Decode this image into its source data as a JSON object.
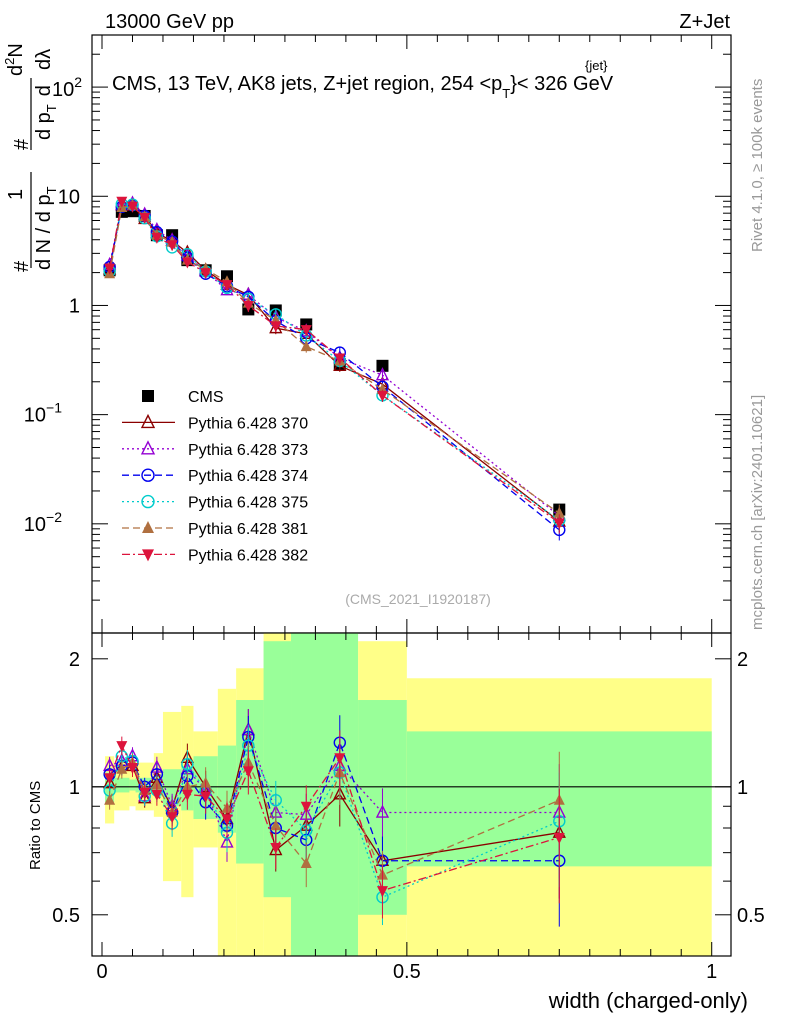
{
  "header": {
    "energy_label": "13000 GeV pp",
    "process_label": "Z+Jet",
    "analysis_title": "CMS, 13 TeV, AK8 jets, Z+jet region, 254 <p",
    "title_sup": "{jet}",
    "title_sub": "T",
    "title_tail": "}< 326 GeV",
    "analysis_id": "(CMS_2021_I1920187)",
    "side_right_top": "Rivet 4.1.0, ≥ 100k events",
    "side_right_bottom": "mcplots.cern.ch [arXiv:2401.10621]"
  },
  "axes": {
    "xlabel": "width (charged-only)",
    "ratio_ylabel": "Ratio to CMS",
    "ylabel_parts": [
      "#",
      "1",
      "d N / d p",
      "T",
      "#",
      "d p",
      "T",
      "d",
      "2",
      "N",
      "dλ"
    ],
    "main_ytick_labels": [
      "10",
      "1",
      "10",
      "10",
      "10"
    ],
    "main_ytick_exps": [
      "",
      "",
      "−1",
      "−2",
      "2"
    ],
    "xtick_labels": [
      "0",
      "0.5",
      "1"
    ],
    "ratio_ytick_labels": [
      "0.5",
      "1",
      "2"
    ]
  },
  "chart_data": {
    "type": "scatter",
    "yscale": "log",
    "xlim": [
      0,
      1
    ],
    "ylim": [
      0.001,
      300
    ],
    "ratio_ylim": [
      0.4,
      2.3
    ],
    "x": [
      0.0125,
      0.0325,
      0.05,
      0.07,
      0.09,
      0.115,
      0.14,
      0.17,
      0.205,
      0.24,
      0.285,
      0.335,
      0.39,
      0.46,
      0.75
    ],
    "band_edges": [
      0.005,
      0.02,
      0.045,
      0.055,
      0.085,
      0.1,
      0.13,
      0.15,
      0.19,
      0.22,
      0.265,
      0.31,
      0.36,
      0.42,
      0.5,
      1.0
    ],
    "band_green_lo": [
      0.92,
      0.97,
      0.98,
      0.97,
      0.95,
      0.9,
      0.88,
      0.84,
      0.78,
      0.66,
      0.55,
      0.35,
      0.35,
      0.5,
      0.65
    ],
    "band_green_hi": [
      1.08,
      1.05,
      1.04,
      1.05,
      1.07,
      1.1,
      1.12,
      1.18,
      1.25,
      1.6,
      2.2,
      2.3,
      2.3,
      1.6,
      1.35
    ],
    "band_yellow_lo": [
      0.82,
      0.88,
      0.9,
      0.88,
      0.85,
      0.6,
      0.55,
      0.72,
      0.4,
      0.35,
      0.35,
      0.35,
      0.35,
      0.35,
      0.35
    ],
    "band_yellow_hi": [
      1.18,
      1.14,
      1.14,
      1.14,
      1.2,
      1.5,
      1.55,
      1.35,
      1.7,
      1.9,
      2.3,
      2.3,
      2.2,
      2.2,
      1.8
    ],
    "series": [
      {
        "name": "CMS",
        "color": "#000000",
        "marker": "square",
        "line": "none",
        "values": [
          2.1,
          7.2,
          7.3,
          6.6,
          4.4,
          4.4,
          2.6,
          2.1,
          1.85,
          0.92,
          0.9,
          0.67,
          0.29,
          0.28,
          0.0135
        ]
      },
      {
        "name": "Pythia 6.428 370",
        "color": "#8b0000",
        "marker": "triangle-open",
        "line": "solid",
        "values": [
          2.15,
          8.3,
          8.2,
          6.2,
          4.6,
          3.9,
          3.05,
          2.1,
          1.55,
          1.25,
          0.62,
          0.55,
          0.28,
          0.19,
          0.0105
        ]
      },
      {
        "name": "Pythia 6.428 373",
        "color": "#9400d3",
        "marker": "triangle-open",
        "line": "dotted",
        "values": [
          2.35,
          8.3,
          8.6,
          6.8,
          4.9,
          3.95,
          2.85,
          2.05,
          1.38,
          1.25,
          0.78,
          0.58,
          0.33,
          0.23,
          0.0118
        ]
      },
      {
        "name": "Pythia 6.428 374",
        "color": "#0000ee",
        "marker": "circle-open",
        "line": "dashed",
        "values": [
          2.25,
          8.0,
          8.3,
          6.6,
          4.7,
          3.85,
          2.75,
          1.95,
          1.5,
          1.2,
          0.72,
          0.5,
          0.37,
          0.18,
          0.0088
        ]
      },
      {
        "name": "Pythia 6.428 375",
        "color": "#00cccc",
        "marker": "circle-open",
        "line": "dotted",
        "values": [
          2.05,
          8.5,
          8.4,
          6.3,
          4.3,
          3.4,
          2.95,
          2.05,
          1.45,
          1.15,
          0.83,
          0.53,
          0.31,
          0.15,
          0.0108
        ]
      },
      {
        "name": "Pythia 6.428 381",
        "color": "#b07040",
        "marker": "triangle-filled",
        "line": "dashed",
        "values": [
          1.95,
          7.9,
          8.3,
          6.5,
          4.4,
          3.8,
          2.6,
          2.15,
          1.65,
          1.05,
          0.73,
          0.42,
          0.31,
          0.17,
          0.0125
        ]
      },
      {
        "name": "Pythia 6.428 382",
        "color": "#dc143c",
        "marker": "triangle-down-filled",
        "line": "dashdot",
        "values": [
          2.2,
          9.0,
          8.1,
          6.4,
          4.2,
          3.6,
          2.5,
          2.0,
          1.55,
          1.0,
          0.65,
          0.6,
          0.33,
          0.15,
          0.0102
        ]
      }
    ],
    "ratio_series": [
      {
        "name": "Pythia 6.428 370",
        "values": [
          1.02,
          1.15,
          1.12,
          0.94,
          1.05,
          0.89,
          1.17,
          1.0,
          0.84,
          1.36,
          0.71,
          0.81,
          0.96,
          0.67,
          0.78
        ]
      },
      {
        "name": "Pythia 6.428 373",
        "values": [
          1.12,
          1.15,
          1.18,
          0.95,
          1.11,
          0.9,
          1.1,
          0.98,
          0.74,
          1.36,
          0.87,
          0.86,
          1.12,
          0.87,
          0.87
        ]
      },
      {
        "name": "Pythia 6.428 374",
        "values": [
          1.07,
          1.12,
          1.14,
          1.0,
          1.07,
          0.87,
          1.06,
          0.92,
          0.81,
          1.31,
          0.8,
          0.75,
          1.27,
          0.67,
          0.67
        ]
      },
      {
        "name": "Pythia 6.428 375",
        "values": [
          0.98,
          1.18,
          1.15,
          0.95,
          0.98,
          0.82,
          1.13,
          0.98,
          0.78,
          1.25,
          0.93,
          0.79,
          1.08,
          0.55,
          0.83
        ]
      },
      {
        "name": "Pythia 6.428 381",
        "values": [
          0.93,
          1.1,
          1.14,
          0.98,
          1.01,
          0.87,
          1.0,
          1.02,
          0.89,
          1.14,
          0.81,
          0.66,
          1.08,
          0.62,
          0.93
        ]
      },
      {
        "name": "Pythia 6.428 382",
        "values": [
          1.05,
          1.25,
          1.11,
          0.97,
          0.96,
          0.85,
          0.96,
          0.95,
          0.84,
          1.09,
          0.72,
          0.9,
          1.17,
          0.57,
          0.76
        ]
      }
    ]
  }
}
